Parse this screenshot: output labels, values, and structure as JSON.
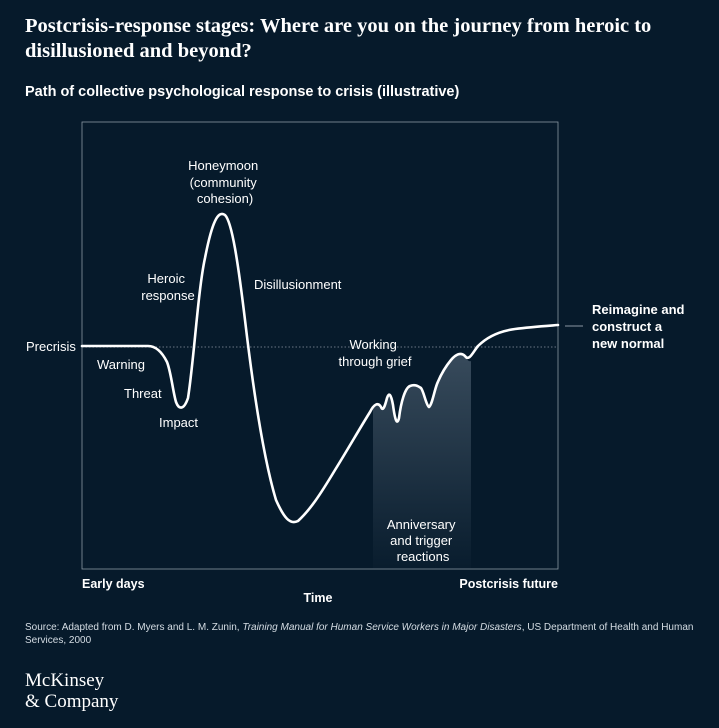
{
  "title": "Postcrisis-response stages: Where are you on the journey from heroic to disillusioned and beyond?",
  "subtitle": "Path of collective psychological response to crisis (illustrative)",
  "chart_data": {
    "type": "line",
    "title": "Path of collective psychological response to crisis (illustrative)",
    "xlabel": "Time",
    "x_start_label": "Early days",
    "x_end_label": "Postcrisis future",
    "baseline_label": "Precrisis",
    "end_label": [
      "Reimagine and",
      "construct a",
      "new normal"
    ],
    "shaded_region_label": [
      "Anniversary",
      "and trigger",
      "reactions"
    ],
    "stage_labels": [
      {
        "id": "warning",
        "lines": [
          "Warning"
        ]
      },
      {
        "id": "threat",
        "lines": [
          "Threat"
        ]
      },
      {
        "id": "impact",
        "lines": [
          "Impact"
        ]
      },
      {
        "id": "heroic",
        "lines": [
          "Heroic",
          "response"
        ]
      },
      {
        "id": "honeymoon",
        "lines": [
          "Honeymoon",
          "(community",
          "cohesion)"
        ]
      },
      {
        "id": "disillusionment",
        "lines": [
          "Disillusionment"
        ]
      },
      {
        "id": "working",
        "lines": [
          "Working",
          "through grief"
        ]
      }
    ],
    "grid": false,
    "colors": {
      "background": "#061a2b",
      "line": "#ffffff",
      "frame": "#8a97a3",
      "shade": "#3a4d5e"
    }
  },
  "source": {
    "prefix": "Source: Adapted from D. Myers and L. M. Zunin, ",
    "italic": "Training Manual for Human Service Workers in Major Disasters",
    "suffix": ", US Department of Health and Human Services, 2000"
  },
  "logo": {
    "line1": "McKinsey",
    "line2": "& Company"
  }
}
